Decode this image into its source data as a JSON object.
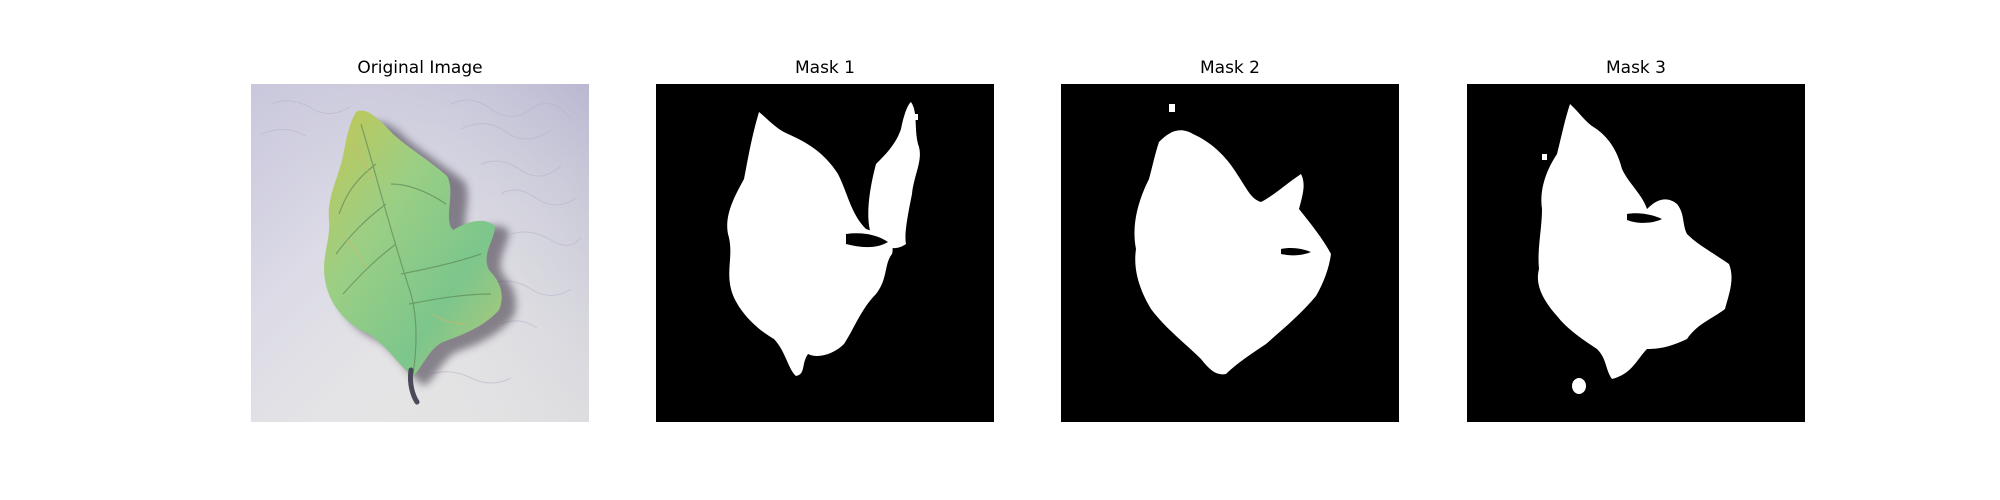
{
  "figure": {
    "panels": [
      {
        "title": "Original Image",
        "image": "leaf-photo"
      },
      {
        "title": "Mask 1",
        "image": "segmentation-mask"
      },
      {
        "title": "Mask 2",
        "image": "segmentation-mask"
      },
      {
        "title": "Mask 3",
        "image": "segmentation-mask"
      }
    ],
    "colors": {
      "mask_background": "#000000",
      "mask_foreground": "#ffffff",
      "leaf_green": "#8fcf8a",
      "leaf_yellow": "#c9c35a",
      "photo_background": "#d9d9d9"
    }
  }
}
